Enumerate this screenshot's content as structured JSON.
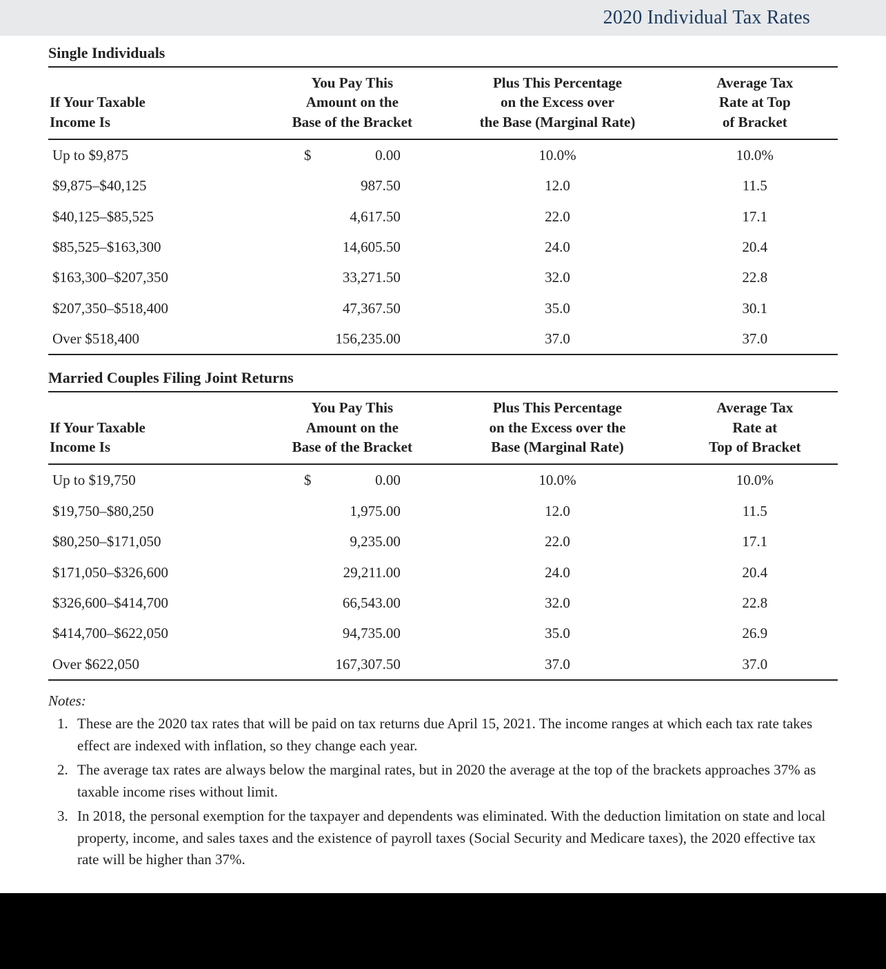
{
  "title": "2020 Individual Tax Rates",
  "colors": {
    "title_text": "#1c3a5e",
    "title_band_bg": "#e7e9eb",
    "text": "#1a1a1a",
    "border": "#222222",
    "page_bg": "#ffffff",
    "bottom_bar": "#000000"
  },
  "typography": {
    "title_fontsize_pt": 21,
    "section_label_fontsize_pt": 16,
    "body_fontsize_pt": 15,
    "font_family": "Georgia / serif"
  },
  "tables": {
    "single": {
      "type": "table",
      "section_label": "Single Individuals",
      "columns": [
        {
          "key": "income",
          "lines": [
            "",
            "If Your Taxable",
            "Income Is"
          ],
          "align": "left",
          "width_pct": 27
        },
        {
          "key": "amount",
          "lines": [
            "You Pay This",
            "Amount on the",
            "Base of the Bracket"
          ],
          "align": "center",
          "width_pct": 23
        },
        {
          "key": "marginal",
          "lines": [
            "Plus This Percentage",
            "on the Excess over",
            "the Base (Marginal Rate)"
          ],
          "align": "center",
          "width_pct": 29
        },
        {
          "key": "average",
          "lines": [
            "Average Tax",
            "Rate at Top",
            "of Bracket"
          ],
          "align": "center",
          "width_pct": 21
        }
      ],
      "rows": [
        {
          "income": "Up to $9,875",
          "amount": "0.00",
          "show_dollar": true,
          "marginal": "10.0%",
          "average": "10.0%"
        },
        {
          "income": "$9,875–$40,125",
          "amount": "987.50",
          "show_dollar": false,
          "marginal": "12.0",
          "average": "11.5"
        },
        {
          "income": "$40,125–$85,525",
          "amount": "4,617.50",
          "show_dollar": false,
          "marginal": "22.0",
          "average": "17.1"
        },
        {
          "income": "$85,525–$163,300",
          "amount": "14,605.50",
          "show_dollar": false,
          "marginal": "24.0",
          "average": "20.4"
        },
        {
          "income": "$163,300–$207,350",
          "amount": "33,271.50",
          "show_dollar": false,
          "marginal": "32.0",
          "average": "22.8"
        },
        {
          "income": "$207,350–$518,400",
          "amount": "47,367.50",
          "show_dollar": false,
          "marginal": "35.0",
          "average": "30.1"
        },
        {
          "income": "Over $518,400",
          "amount": "156,235.00",
          "show_dollar": false,
          "marginal": "37.0",
          "average": "37.0"
        }
      ]
    },
    "married": {
      "type": "table",
      "section_label": "Married Couples Filing Joint Returns",
      "columns": [
        {
          "key": "income",
          "lines": [
            "",
            "If Your Taxable",
            "Income Is"
          ],
          "align": "left",
          "width_pct": 27
        },
        {
          "key": "amount",
          "lines": [
            "You Pay This",
            "Amount on the",
            "Base of the Bracket"
          ],
          "align": "center",
          "width_pct": 23
        },
        {
          "key": "marginal",
          "lines": [
            "Plus This Percentage",
            "on the Excess over the",
            "Base (Marginal Rate)"
          ],
          "align": "center",
          "width_pct": 29
        },
        {
          "key": "average",
          "lines": [
            "Average Tax",
            "Rate at",
            "Top of Bracket"
          ],
          "align": "center",
          "width_pct": 21
        }
      ],
      "rows": [
        {
          "income": "Up to $19,750",
          "amount": "0.00",
          "show_dollar": true,
          "marginal": "10.0%",
          "average": "10.0%"
        },
        {
          "income": "$19,750–$80,250",
          "amount": "1,975.00",
          "show_dollar": false,
          "marginal": "12.0",
          "average": "11.5"
        },
        {
          "income": "$80,250–$171,050",
          "amount": "9,235.00",
          "show_dollar": false,
          "marginal": "22.0",
          "average": "17.1"
        },
        {
          "income": "$171,050–$326,600",
          "amount": "29,211.00",
          "show_dollar": false,
          "marginal": "24.0",
          "average": "20.4"
        },
        {
          "income": "$326,600–$414,700",
          "amount": "66,543.00",
          "show_dollar": false,
          "marginal": "32.0",
          "average": "22.8"
        },
        {
          "income": "$414,700–$622,050",
          "amount": "94,735.00",
          "show_dollar": false,
          "marginal": "35.0",
          "average": "26.9"
        },
        {
          "income": "Over $622,050",
          "amount": "167,307.50",
          "show_dollar": false,
          "marginal": "37.0",
          "average": "37.0"
        }
      ]
    }
  },
  "notes": {
    "label": "Notes:",
    "items": [
      "These are the 2020 tax rates that will be paid on tax returns due April 15, 2021. The income ranges at which each tax rate takes effect are indexed with inflation, so they change each year.",
      "The average tax rates are always below the marginal rates, but in 2020 the average at the top of the brackets approaches 37% as taxable income rises without limit.",
      "In 2018, the personal exemption for the taxpayer and dependents was eliminated. With the deduction limitation on state and local property, income, and sales taxes and the existence of payroll taxes (Social Security and Medicare taxes), the 2020 effective tax rate will be higher than 37%."
    ]
  }
}
